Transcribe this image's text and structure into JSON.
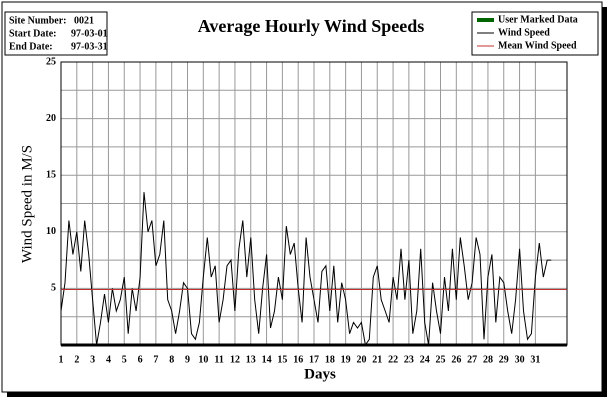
{
  "chart_data": {
    "type": "line",
    "title": "Average Hourly Wind Speeds",
    "info": [
      [
        "Site Number:",
        "0021"
      ],
      [
        "Start Date:",
        "97-03-01"
      ],
      [
        "End Date:",
        "97-03-31"
      ]
    ],
    "xlabel": "Days",
    "ylabel": "Wind Speed in M/S",
    "xlim": [
      1,
      33
    ],
    "ylim": [
      0,
      25
    ],
    "xticks": [
      1,
      2,
      3,
      4,
      5,
      6,
      7,
      8,
      9,
      10,
      11,
      12,
      13,
      14,
      15,
      16,
      17,
      18,
      19,
      20,
      21,
      22,
      23,
      24,
      25,
      26,
      27,
      28,
      29,
      30,
      31
    ],
    "yticks": [
      5,
      10,
      15,
      20,
      25
    ],
    "minor_yticks": [
      2.5,
      7.5,
      12.5,
      17.5,
      22.5
    ],
    "grid": true,
    "legend": "top-right",
    "series": [
      {
        "name": "User Marked Data",
        "color": "#006400",
        "x": [],
        "values": []
      },
      {
        "name": "Wind Speed",
        "color": "#000000",
        "x": [
          1,
          1.25,
          1.5,
          1.75,
          2,
          2.25,
          2.5,
          2.75,
          3,
          3.25,
          3.5,
          3.75,
          4,
          4.25,
          4.5,
          4.75,
          5,
          5.25,
          5.5,
          5.75,
          6,
          6.25,
          6.5,
          6.75,
          7,
          7.25,
          7.5,
          7.75,
          8,
          8.25,
          8.5,
          8.75,
          9,
          9.25,
          9.5,
          9.75,
          10,
          10.25,
          10.5,
          10.75,
          11,
          11.25,
          11.5,
          11.75,
          12,
          12.25,
          12.5,
          12.75,
          13,
          13.25,
          13.5,
          13.75,
          14,
          14.25,
          14.5,
          14.75,
          15,
          15.25,
          15.5,
          15.75,
          16,
          16.25,
          16.5,
          16.75,
          17,
          17.25,
          17.5,
          17.75,
          18,
          18.25,
          18.5,
          18.75,
          19,
          19.25,
          19.5,
          19.75,
          20,
          20.25,
          20.5,
          20.75,
          21,
          21.25,
          21.5,
          21.75,
          22,
          22.25,
          22.5,
          22.75,
          23,
          23.25,
          23.5,
          23.75,
          24,
          24.25,
          24.5,
          24.75,
          25,
          25.25,
          25.5,
          25.75,
          26,
          26.25,
          26.5,
          26.75,
          27,
          27.25,
          27.5,
          27.75,
          28,
          28.25,
          28.5,
          28.75,
          29,
          29.25,
          29.5,
          29.75,
          30,
          30.25,
          30.5,
          30.75,
          31,
          31.25,
          31.5,
          31.75,
          32
        ],
        "values": [
          3,
          5.5,
          11,
          8,
          10,
          6.5,
          11,
          8,
          4,
          0,
          2,
          4.5,
          2,
          5,
          3,
          4,
          6,
          1,
          5,
          3,
          6,
          13.5,
          10,
          11,
          7,
          8,
          11,
          4,
          3,
          1,
          3,
          5.5,
          5,
          1,
          0.5,
          2,
          6,
          9.5,
          6,
          7,
          2,
          4,
          7,
          7.5,
          3,
          8.5,
          11,
          6,
          9.5,
          4,
          1,
          5,
          8,
          1.5,
          3,
          6,
          4,
          10.5,
          8,
          9,
          5,
          2,
          9.5,
          6,
          4,
          2,
          6.5,
          7,
          3,
          7,
          2,
          5.5,
          4,
          1,
          2,
          1.5,
          2,
          0,
          0.5,
          6,
          7,
          4,
          3,
          2,
          6,
          4,
          8.5,
          4,
          7.5,
          1,
          3,
          8.5,
          2,
          0,
          5.5,
          3,
          1,
          6,
          3,
          8.5,
          4,
          9.5,
          7,
          4,
          5.5,
          9.5,
          8,
          0.5,
          6,
          8,
          2,
          6,
          5.5,
          3,
          1,
          4,
          8.5,
          3,
          0.5,
          1,
          6,
          9,
          6,
          7.5,
          7.5
        ]
      },
      {
        "name": "Mean Wind Speed",
        "color": "#c03030",
        "x": [
          1,
          33
        ],
        "values": [
          4.9,
          4.9
        ]
      }
    ]
  }
}
